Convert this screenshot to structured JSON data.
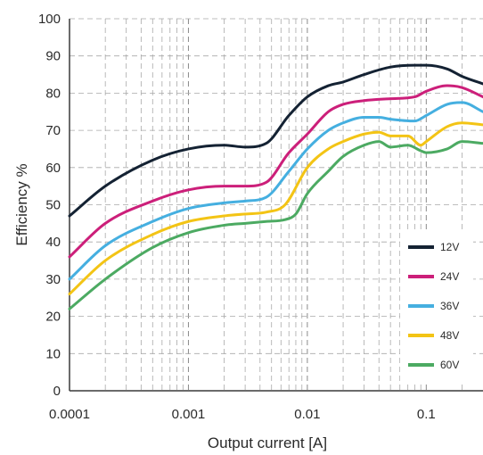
{
  "chart_data": {
    "type": "line",
    "title": "",
    "xlabel": "Output current [A]",
    "ylabel": "Efficiency %",
    "xscale": "log",
    "xlim": [
      0.0001,
      0.3
    ],
    "ylim": [
      0,
      100
    ],
    "xticks": [
      0.0001,
      0.001,
      0.01,
      0.1
    ],
    "xtick_labels": [
      "0.0001",
      "0.001",
      "0.01",
      "0.1"
    ],
    "yticks": [
      0,
      10,
      20,
      30,
      40,
      50,
      60,
      70,
      80,
      90,
      100
    ],
    "ytick_labels": [
      "0",
      "10",
      "20",
      "30",
      "40",
      "50",
      "60",
      "70",
      "80",
      "90",
      "100"
    ],
    "grid": true,
    "legend_position": "right",
    "series": [
      {
        "name": "12V",
        "color": "#142233",
        "x": [
          0.0001,
          0.0002,
          0.0005,
          0.001,
          0.002,
          0.003,
          0.0045,
          0.007,
          0.01,
          0.015,
          0.02,
          0.03,
          0.05,
          0.08,
          0.1,
          0.15,
          0.2,
          0.3
        ],
        "y": [
          47,
          55,
          62,
          65,
          66,
          65.5,
          66.5,
          74,
          79,
          82,
          83,
          85,
          87,
          87.5,
          87.5,
          86.5,
          84.5,
          82.5
        ]
      },
      {
        "name": "24V",
        "color": "#cc1f7a",
        "x": [
          0.0001,
          0.0002,
          0.0005,
          0.001,
          0.002,
          0.003,
          0.0045,
          0.007,
          0.01,
          0.015,
          0.02,
          0.03,
          0.05,
          0.08,
          0.1,
          0.15,
          0.2,
          0.3
        ],
        "y": [
          36,
          45,
          51,
          54,
          55,
          55,
          56,
          64,
          69,
          75,
          77,
          78,
          78.5,
          79,
          80.5,
          82,
          81.5,
          79
        ]
      },
      {
        "name": "36V",
        "color": "#45afe0",
        "x": [
          0.0001,
          0.0002,
          0.0005,
          0.001,
          0.002,
          0.003,
          0.0045,
          0.007,
          0.01,
          0.015,
          0.02,
          0.03,
          0.04,
          0.05,
          0.08,
          0.1,
          0.15,
          0.2,
          0.3
        ],
        "y": [
          30,
          39,
          45.5,
          49,
          50.5,
          51,
          52,
          59,
          65,
          70,
          72,
          73.5,
          73.5,
          73,
          72.5,
          74,
          77,
          77.5,
          75
        ]
      },
      {
        "name": "48V",
        "color": "#f3c415",
        "x": [
          0.0001,
          0.0002,
          0.0005,
          0.001,
          0.002,
          0.003,
          0.0045,
          0.0065,
          0.01,
          0.015,
          0.02,
          0.03,
          0.04,
          0.05,
          0.07,
          0.09,
          0.1,
          0.15,
          0.2,
          0.3
        ],
        "y": [
          26,
          35,
          42,
          45.5,
          47,
          47.5,
          48,
          50,
          60,
          65,
          67,
          69,
          69.5,
          68.5,
          68.5,
          66,
          67,
          71,
          72,
          71.5
        ]
      },
      {
        "name": "60V",
        "color": "#4caa62",
        "x": [
          0.0001,
          0.0002,
          0.0005,
          0.001,
          0.002,
          0.003,
          0.0045,
          0.0065,
          0.008,
          0.01,
          0.015,
          0.02,
          0.03,
          0.04,
          0.05,
          0.07,
          0.09,
          0.1,
          0.15,
          0.2,
          0.3
        ],
        "y": [
          22,
          30,
          38.5,
          42.5,
          44.5,
          45,
          45.5,
          46,
          47.5,
          53,
          59,
          63,
          66,
          67,
          65.5,
          66,
          64.5,
          64,
          65,
          67,
          66.5
        ]
      }
    ]
  }
}
